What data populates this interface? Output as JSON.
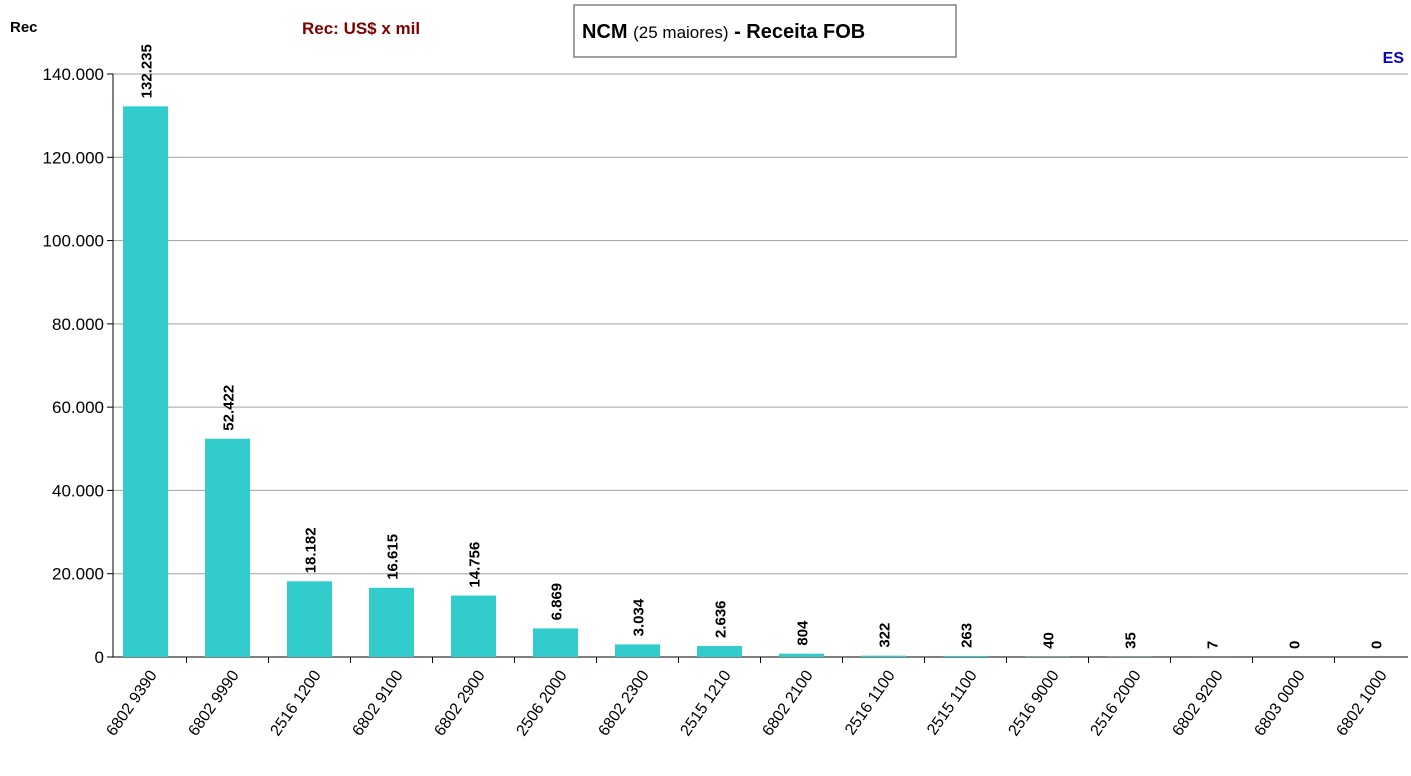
{
  "chart_data": {
    "type": "bar",
    "title_parts": [
      "NCM",
      "(25 maiores)",
      "- Receita FOB"
    ],
    "y_axis_label": "Rec",
    "unit_note": "Rec: US$ x mil",
    "annotation": "ES",
    "categories": [
      "6802 9390",
      "6802 9990",
      "2516 1200",
      "6802 9100",
      "6802 2900",
      "2506 2000",
      "6802 2300",
      "2515 1210",
      "6802 2100",
      "2516 1100",
      "2515 1100",
      "2516 9000",
      "2516 2000",
      "6802 9200",
      "6803 0000",
      "6802 1000"
    ],
    "values": [
      132235,
      52422,
      18182,
      16615,
      14756,
      6869,
      3034,
      2636,
      804,
      322,
      263,
      40,
      35,
      7,
      0,
      0
    ],
    "value_labels": [
      "132.235",
      "52.422",
      "18.182",
      "16.615",
      "14.756",
      "6.869",
      "3.034",
      "2.636",
      "804",
      "322",
      "263",
      "40",
      "35",
      "7",
      "0",
      "0"
    ],
    "color": "#33cccc",
    "ylim": [
      0,
      140000
    ],
    "yticks": [
      0,
      {
        "value": 20000,
        "label": "20.000"
      },
      {
        "value": 40000,
        "label": "40.000"
      },
      {
        "value": 60000,
        "label": "60.000"
      },
      {
        "value": 80000,
        "label": "80.000"
      },
      {
        "value": 100000,
        "label": "100.000"
      },
      {
        "value": 120000,
        "label": "120.000"
      },
      {
        "value": 140000,
        "label": "140.000"
      }
    ],
    "grid": true
  }
}
